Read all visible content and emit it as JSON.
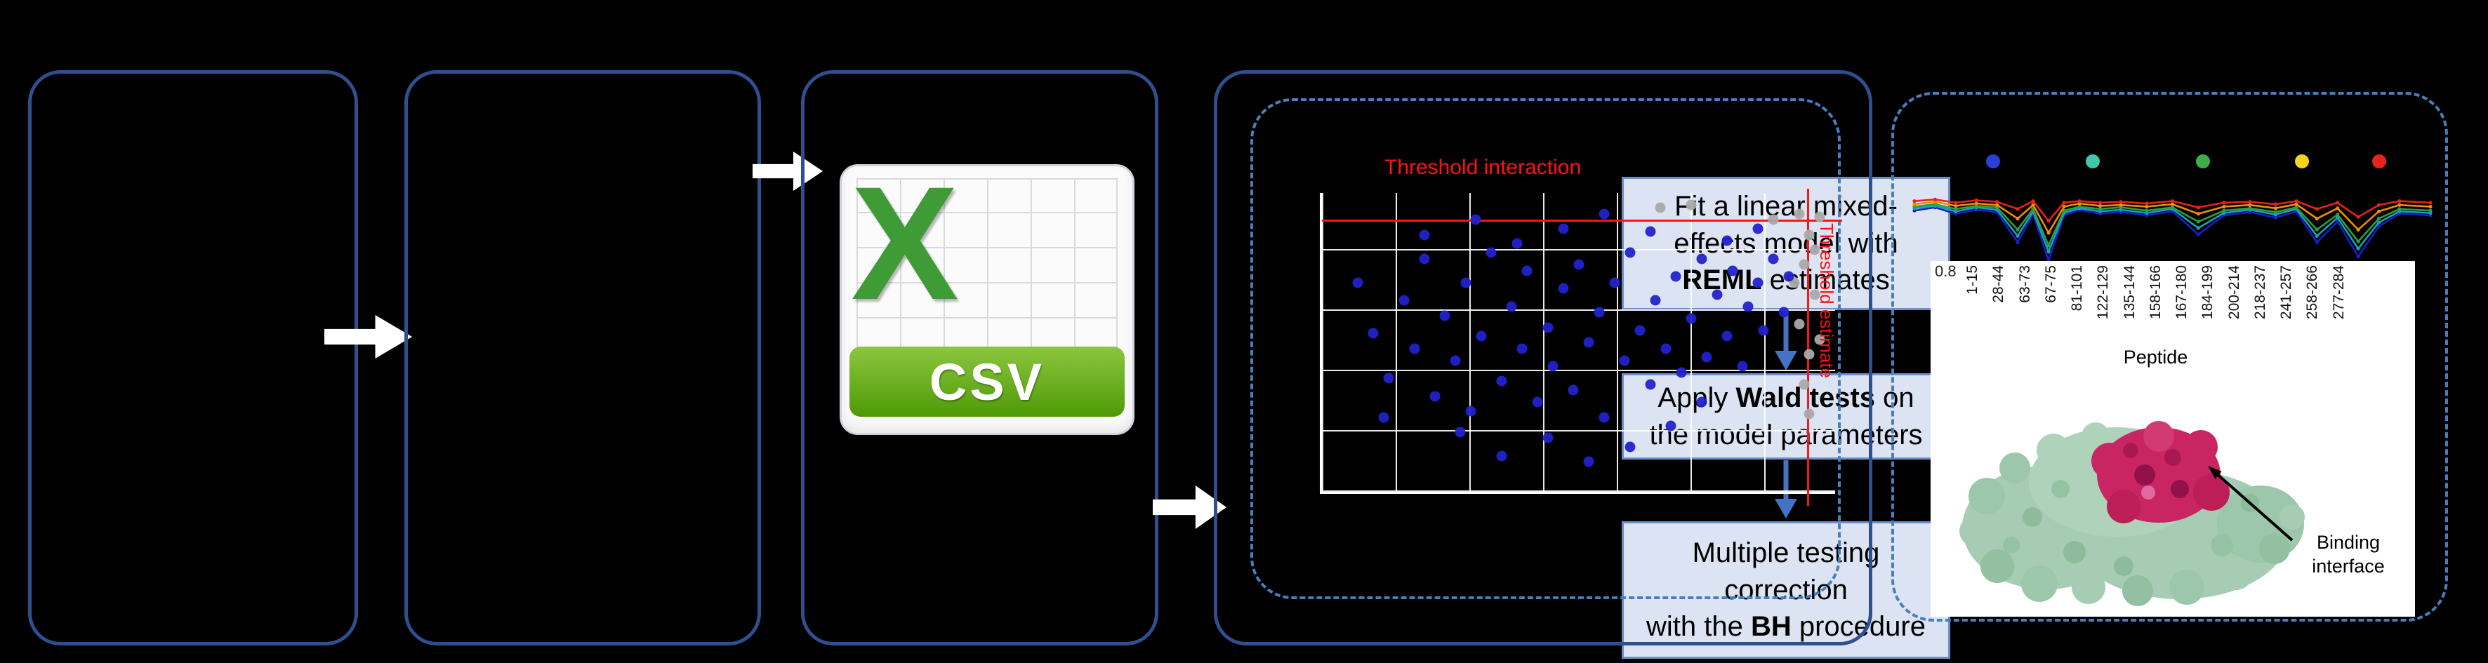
{
  "colors": {
    "panel_border": "#2f4f8f",
    "dashed_border": "#4a7ebb",
    "flow_box_fill": "#dce4f3",
    "threshold_red": "#ff1212",
    "scatter_blue": "#2222cc",
    "scatter_gray": "#a9a9a9",
    "csv_green": "#3f9b35"
  },
  "csv": {
    "letter": "X",
    "label": "CSV"
  },
  "pipeline_boxes": [
    {
      "lines": [
        [
          {
            "t": "Fit a linear mixed-"
          }
        ],
        [
          {
            "t": "effects model with"
          }
        ],
        [
          {
            "t": "REML",
            "b": true
          },
          {
            "t": " estimates"
          }
        ]
      ]
    },
    {
      "lines": [
        [
          {
            "t": "Apply "
          },
          {
            "t": "Wald tests",
            "b": true
          },
          {
            "t": " on"
          }
        ],
        [
          {
            "t": "the model parameters"
          }
        ]
      ]
    },
    {
      "lines": [
        [
          {
            "t": "Multiple testing"
          }
        ],
        [
          {
            "t": "correction"
          }
        ],
        [
          {
            "t": "with the "
          },
          {
            "t": "BH",
            "b": true
          },
          {
            "t": " procedure"
          }
        ]
      ]
    }
  ],
  "scatter": {
    "type": "scatter",
    "threshold_interaction_label": "Threshold interaction",
    "threshold_estimate_label": "Threshold estimate",
    "blue_points": [
      [
        7,
        30
      ],
      [
        10,
        47
      ],
      [
        13,
        62
      ],
      [
        16,
        36
      ],
      [
        18,
        52
      ],
      [
        20,
        22
      ],
      [
        22,
        68
      ],
      [
        24,
        41
      ],
      [
        26,
        56
      ],
      [
        28,
        30
      ],
      [
        29,
        73
      ],
      [
        31,
        48
      ],
      [
        33,
        20
      ],
      [
        35,
        63
      ],
      [
        37,
        38
      ],
      [
        39,
        52
      ],
      [
        40,
        26
      ],
      [
        42,
        70
      ],
      [
        44,
        45
      ],
      [
        45,
        58
      ],
      [
        47,
        32
      ],
      [
        49,
        66
      ],
      [
        50,
        24
      ],
      [
        52,
        50
      ],
      [
        54,
        40
      ],
      [
        55,
        75
      ],
      [
        57,
        30
      ],
      [
        59,
        56
      ],
      [
        60,
        20
      ],
      [
        62,
        46
      ],
      [
        64,
        64
      ],
      [
        65,
        36
      ],
      [
        67,
        52
      ],
      [
        69,
        28
      ],
      [
        70,
        60
      ],
      [
        72,
        42
      ],
      [
        74,
        22
      ],
      [
        75,
        55
      ],
      [
        77,
        34
      ],
      [
        79,
        48
      ],
      [
        80,
        26
      ],
      [
        82,
        58
      ],
      [
        83,
        38
      ],
      [
        85,
        30
      ],
      [
        86,
        46
      ],
      [
        88,
        22
      ],
      [
        60,
        85
      ],
      [
        35,
        88
      ],
      [
        27,
        80
      ],
      [
        44,
        82
      ],
      [
        52,
        90
      ],
      [
        12,
        75
      ],
      [
        90,
        40
      ],
      [
        91,
        28
      ],
      [
        68,
        78
      ],
      [
        74,
        70
      ],
      [
        20,
        14
      ],
      [
        47,
        12
      ],
      [
        64,
        13
      ],
      [
        79,
        16
      ],
      [
        30,
        9
      ],
      [
        55,
        7
      ],
      [
        85,
        12
      ],
      [
        38,
        17
      ]
    ],
    "gray_points": [
      [
        93,
        7
      ],
      [
        95,
        14
      ],
      [
        94,
        24
      ],
      [
        96,
        34
      ],
      [
        93,
        44
      ],
      [
        95,
        54
      ],
      [
        94,
        64
      ],
      [
        96,
        19
      ],
      [
        92,
        30
      ],
      [
        95,
        74
      ],
      [
        88,
        9
      ],
      [
        97,
        49
      ],
      [
        66,
        5
      ],
      [
        72,
        4
      ],
      [
        97,
        8
      ]
    ]
  },
  "uptake": {
    "type": "line",
    "axis_tick": "0.8",
    "legend_dots": [
      {
        "color": "#2a3fd4",
        "x": 18
      },
      {
        "color": "#3fc8a9",
        "x": 36
      },
      {
        "color": "#3fae49",
        "x": 56
      },
      {
        "color": "#f5d21c",
        "x": 74
      },
      {
        "color": "#e8231a",
        "x": 88
      }
    ],
    "series": [
      {
        "name": "state-blue",
        "color": "#1c1ccf",
        "points": [
          [
            0,
            32
          ],
          [
            4,
            28
          ],
          [
            8,
            36
          ],
          [
            12,
            31
          ],
          [
            16,
            34
          ],
          [
            20,
            72
          ],
          [
            23,
            36
          ],
          [
            26,
            95
          ],
          [
            29,
            38
          ],
          [
            32,
            31
          ],
          [
            36,
            36
          ],
          [
            40,
            34
          ],
          [
            45,
            38
          ],
          [
            50,
            33
          ],
          [
            55,
            62
          ],
          [
            60,
            38
          ],
          [
            65,
            34
          ],
          [
            70,
            41
          ],
          [
            74,
            33
          ],
          [
            78,
            72
          ],
          [
            82,
            46
          ],
          [
            86,
            90
          ],
          [
            90,
            52
          ],
          [
            94,
            36
          ],
          [
            100,
            38
          ]
        ]
      },
      {
        "name": "state-teal",
        "color": "#12a5b8",
        "points": [
          [
            0,
            29
          ],
          [
            4,
            26
          ],
          [
            8,
            33
          ],
          [
            12,
            28
          ],
          [
            16,
            31
          ],
          [
            20,
            64
          ],
          [
            23,
            33
          ],
          [
            26,
            84
          ],
          [
            29,
            35
          ],
          [
            32,
            29
          ],
          [
            36,
            33
          ],
          [
            40,
            31
          ],
          [
            45,
            35
          ],
          [
            50,
            30
          ],
          [
            55,
            54
          ],
          [
            60,
            35
          ],
          [
            65,
            31
          ],
          [
            70,
            37
          ],
          [
            74,
            30
          ],
          [
            78,
            64
          ],
          [
            82,
            41
          ],
          [
            86,
            80
          ],
          [
            90,
            47
          ],
          [
            94,
            33
          ],
          [
            100,
            35
          ]
        ]
      },
      {
        "name": "state-green",
        "color": "#2e9e3f",
        "points": [
          [
            0,
            27
          ],
          [
            4,
            24
          ],
          [
            8,
            30
          ],
          [
            12,
            26
          ],
          [
            16,
            28
          ],
          [
            20,
            56
          ],
          [
            23,
            30
          ],
          [
            26,
            76
          ],
          [
            29,
            32
          ],
          [
            32,
            27
          ],
          [
            36,
            30
          ],
          [
            40,
            28
          ],
          [
            45,
            32
          ],
          [
            50,
            28
          ],
          [
            55,
            46
          ],
          [
            60,
            32
          ],
          [
            65,
            29
          ],
          [
            70,
            34
          ],
          [
            74,
            28
          ],
          [
            78,
            56
          ],
          [
            82,
            37
          ],
          [
            86,
            71
          ],
          [
            90,
            42
          ],
          [
            94,
            30
          ],
          [
            100,
            32
          ]
        ]
      },
      {
        "name": "state-orange",
        "color": "#f28c00",
        "points": [
          [
            0,
            24
          ],
          [
            4,
            21
          ],
          [
            8,
            26
          ],
          [
            12,
            23
          ],
          [
            16,
            25
          ],
          [
            20,
            42
          ],
          [
            23,
            25
          ],
          [
            26,
            60
          ],
          [
            29,
            27
          ],
          [
            32,
            23
          ],
          [
            36,
            26
          ],
          [
            40,
            25
          ],
          [
            45,
            27
          ],
          [
            50,
            24
          ],
          [
            55,
            36
          ],
          [
            60,
            27
          ],
          [
            65,
            25
          ],
          [
            70,
            29
          ],
          [
            74,
            24
          ],
          [
            78,
            42
          ],
          [
            82,
            29
          ],
          [
            86,
            56
          ],
          [
            90,
            33
          ],
          [
            94,
            25
          ],
          [
            100,
            27
          ]
        ]
      },
      {
        "name": "state-red",
        "color": "#e8231a",
        "points": [
          [
            0,
            20
          ],
          [
            4,
            18
          ],
          [
            8,
            22
          ],
          [
            12,
            19
          ],
          [
            16,
            21
          ],
          [
            20,
            30
          ],
          [
            23,
            20
          ],
          [
            26,
            45
          ],
          [
            29,
            22
          ],
          [
            32,
            20
          ],
          [
            36,
            22
          ],
          [
            40,
            21
          ],
          [
            45,
            23
          ],
          [
            50,
            20
          ],
          [
            55,
            28
          ],
          [
            60,
            22
          ],
          [
            65,
            21
          ],
          [
            70,
            24
          ],
          [
            74,
            20
          ],
          [
            78,
            30
          ],
          [
            82,
            22
          ],
          [
            86,
            40
          ],
          [
            90,
            25
          ],
          [
            94,
            20
          ],
          [
            100,
            22
          ]
        ]
      }
    ]
  },
  "peptide_axis": {
    "labels": [
      "1-15",
      "28-44",
      "63-73",
      "67-75",
      "81-101",
      "122-129",
      "135-144",
      "158-166",
      "167-180",
      "184-199",
      "200-214",
      "218-237",
      "241-257",
      "258-266",
      "277-284"
    ],
    "title": "Peptide"
  },
  "binding_label": {
    "line1": "Binding",
    "line2": "interface"
  }
}
